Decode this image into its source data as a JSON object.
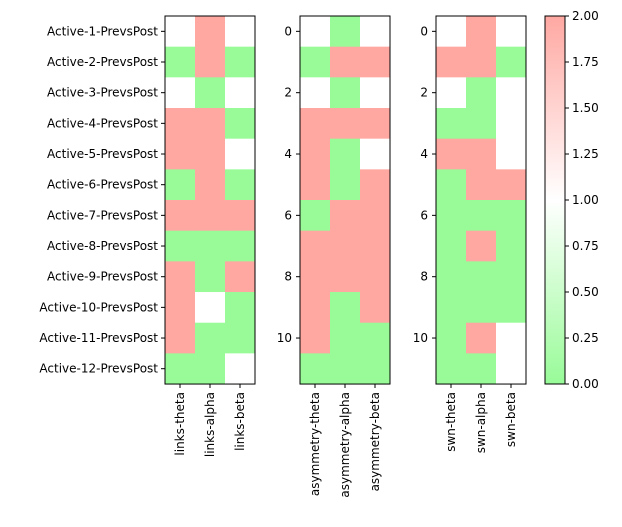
{
  "chart_data": [
    {
      "type": "heatmap",
      "row_labels": [
        "Active-1-PrevsPost",
        "Active-2-PrevsPost",
        "Active-3-PrevsPost",
        "Active-4-PrevsPost",
        "Active-5-PrevsPost",
        "Active-6-PrevsPost",
        "Active-7-PrevsPost",
        "Active-8-PrevsPost",
        "Active-9-PrevsPost",
        "Active-10-PrevsPost",
        "Active-11-PrevsPost",
        "Active-12-PrevsPost"
      ],
      "columns": [
        "links-theta",
        "links-alpha",
        "links-beta"
      ],
      "values": [
        [
          1,
          2,
          1
        ],
        [
          0,
          2,
          0
        ],
        [
          1,
          0,
          1
        ],
        [
          2,
          2,
          0
        ],
        [
          2,
          2,
          1
        ],
        [
          0,
          2,
          0
        ],
        [
          2,
          2,
          2
        ],
        [
          0,
          0,
          0
        ],
        [
          2,
          0,
          2
        ],
        [
          2,
          1,
          0
        ],
        [
          2,
          0,
          0
        ],
        [
          0,
          0,
          1
        ]
      ]
    },
    {
      "type": "heatmap",
      "y_ticks": [
        "0",
        "2",
        "4",
        "6",
        "8",
        "10"
      ],
      "columns": [
        "asymmetry-theta",
        "asymmetry-alpha",
        "asymmetry-beta"
      ],
      "values": [
        [
          1,
          0,
          1
        ],
        [
          0,
          2,
          2
        ],
        [
          1,
          0,
          1
        ],
        [
          2,
          2,
          2
        ],
        [
          2,
          0,
          1
        ],
        [
          2,
          0,
          2
        ],
        [
          0,
          2,
          2
        ],
        [
          2,
          2,
          2
        ],
        [
          2,
          2,
          2
        ],
        [
          2,
          0,
          2
        ],
        [
          2,
          0,
          0
        ],
        [
          0,
          0,
          0
        ]
      ]
    },
    {
      "type": "heatmap",
      "y_ticks": [
        "0",
        "2",
        "4",
        "6",
        "8",
        "10"
      ],
      "columns": [
        "swn-theta",
        "swn-alpha",
        "swn-beta"
      ],
      "values": [
        [
          1,
          2,
          1
        ],
        [
          2,
          2,
          0
        ],
        [
          1,
          0,
          1
        ],
        [
          0,
          0,
          1
        ],
        [
          2,
          2,
          1
        ],
        [
          0,
          2,
          2
        ],
        [
          0,
          0,
          0
        ],
        [
          0,
          2,
          0
        ],
        [
          0,
          0,
          0
        ],
        [
          0,
          0,
          0
        ],
        [
          0,
          2,
          1
        ],
        [
          0,
          0,
          1
        ]
      ]
    }
  ],
  "colorbar": {
    "min": 0,
    "max": 2,
    "colors": {
      "low": "#98fb98",
      "mid": "#ffffff",
      "high": "#ffa8a2"
    },
    "ticks": [
      "0.00",
      "0.25",
      "0.50",
      "0.75",
      "1.00",
      "1.25",
      "1.50",
      "1.75",
      "2.00"
    ]
  }
}
